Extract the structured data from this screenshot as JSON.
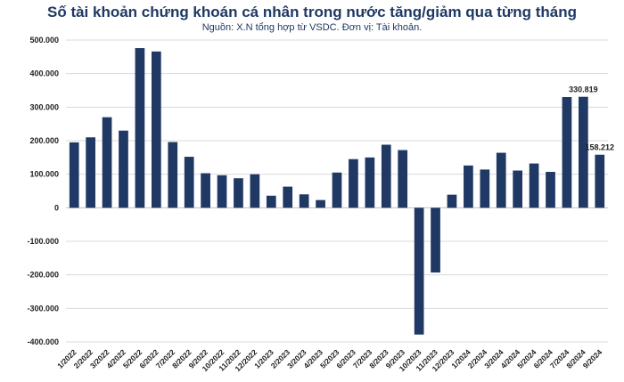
{
  "chart_data": {
    "type": "bar",
    "title": "Số tài khoản chứng khoán cá nhân trong nước tăng/giảm qua từng tháng",
    "subtitle": "Nguồn: X.N tổng hợp từ VSDC. Đơn vị: Tài khoản.",
    "xlabel": "",
    "ylabel": "",
    "ylim": [
      -400000,
      500000
    ],
    "yticks": [
      500000,
      400000,
      300000,
      200000,
      100000,
      0,
      -100000,
      -200000,
      -300000,
      -400000
    ],
    "ytick_labels": [
      "500.000",
      "400.000",
      "300.000",
      "200.000",
      "100.000",
      "0",
      "-100.000",
      "-200.000",
      "-300.000",
      "-400.000"
    ],
    "grid": true,
    "legend": "none",
    "bar_color": "#1f3864",
    "categories": [
      "1/2022",
      "2/2022",
      "3/2022",
      "4/2022",
      "5/2022",
      "6/2022",
      "7/2022",
      "8/2022",
      "9/2022",
      "10/2022",
      "11/2022",
      "12/2022",
      "1/2023",
      "2/2023",
      "3/2023",
      "4/2023",
      "5/2023",
      "6/2023",
      "7/2023",
      "8/2023",
      "9/2023",
      "10/2023",
      "11/2023",
      "12/2023",
      "1/2024",
      "2/2024",
      "3/2024",
      "4/2024",
      "5/2024",
      "6/2024",
      "7/2024",
      "8/2024",
      "9/2024"
    ],
    "values": [
      195000,
      210000,
      270000,
      230000,
      476000,
      466000,
      196000,
      152000,
      103000,
      97000,
      88000,
      100000,
      36000,
      63000,
      40000,
      23000,
      105000,
      145000,
      150000,
      188000,
      172000,
      -378000,
      -193000,
      39000,
      126000,
      114000,
      164000,
      111000,
      132000,
      107000,
      330000,
      330819,
      158212
    ],
    "data_labels": [
      {
        "index": 31,
        "text": "330.819"
      },
      {
        "index": 32,
        "text": "158.212"
      }
    ]
  }
}
